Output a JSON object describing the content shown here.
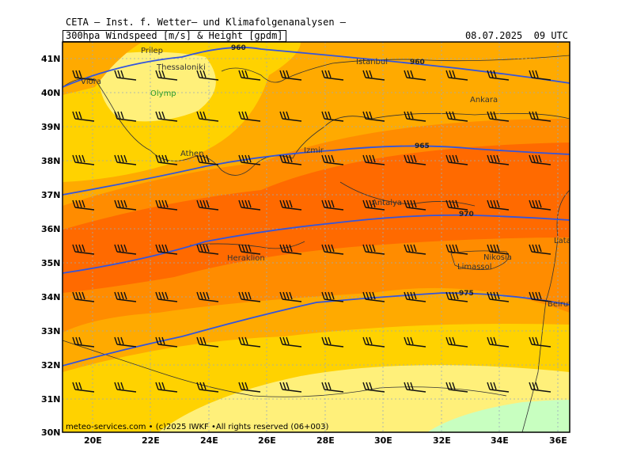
{
  "header": {
    "title": "CETA — Inst. f. Wetter— und Klimafolgenanalysen —",
    "product": "300hpa Windspeed [m/s] & Height [gpdm]",
    "valid_time": "08.07.2025  09 UTC"
  },
  "footer": {
    "copyright": "meteo-services.com • (c)2025 IWKF •All rights reserved (06+003)"
  },
  "axes": {
    "lat_ticks": [
      "41N",
      "40N",
      "39N",
      "38N",
      "37N",
      "36N",
      "35N",
      "34N",
      "33N",
      "32N",
      "31N",
      "30N"
    ],
    "lon_ticks": [
      "20E",
      "22E",
      "24E",
      "26E",
      "28E",
      "30E",
      "32E",
      "34E",
      "36E"
    ]
  },
  "cities": [
    {
      "name": "Prilep"
    },
    {
      "name": "Thessaloniki"
    },
    {
      "name": "Vlora"
    },
    {
      "name": "Olymp"
    },
    {
      "name": "Athen"
    },
    {
      "name": "Istanbul"
    },
    {
      "name": "Ankara"
    },
    {
      "name": "Izmir"
    },
    {
      "name": "Antalya"
    },
    {
      "name": "Heraklion"
    },
    {
      "name": "Nikosia"
    },
    {
      "name": "Limassol"
    },
    {
      "name": "Latakia"
    },
    {
      "name": "Beirut"
    }
  ],
  "height_contours": [
    {
      "label": "960"
    },
    {
      "label": "960"
    },
    {
      "label": "965"
    },
    {
      "label": "970"
    },
    {
      "label": "975"
    }
  ],
  "colors": {
    "wind_10_15": "#fff07a",
    "wind_15_20": "#ffd200",
    "wind_20_25": "#ffaa00",
    "wind_25_30": "#ff8c00",
    "wind_30_35": "#ff6a00",
    "wind_low": "#c8ffc0",
    "contour": "#3355dd"
  }
}
